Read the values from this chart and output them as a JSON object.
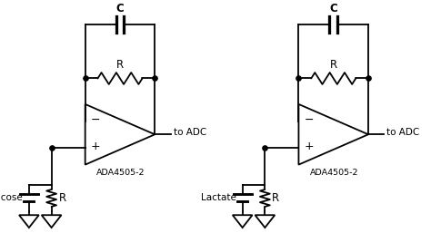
{
  "bg_color": "#ffffff",
  "line_color": "#000000",
  "line_width": 1.3,
  "circuits": [
    {
      "label": "Glucose",
      "opamp_label": "ADA4505-2",
      "adc_label": "to ADC",
      "cap_label": "C",
      "res_label": "R",
      "res_label2": "R",
      "ox": 0.55
    },
    {
      "label": "Lactate",
      "opamp_label": "ADA4505-2",
      "adc_label": "to ADC",
      "cap_label": "C",
      "res_label": "R",
      "res_label2": "R",
      "ox": 5.3
    }
  ]
}
